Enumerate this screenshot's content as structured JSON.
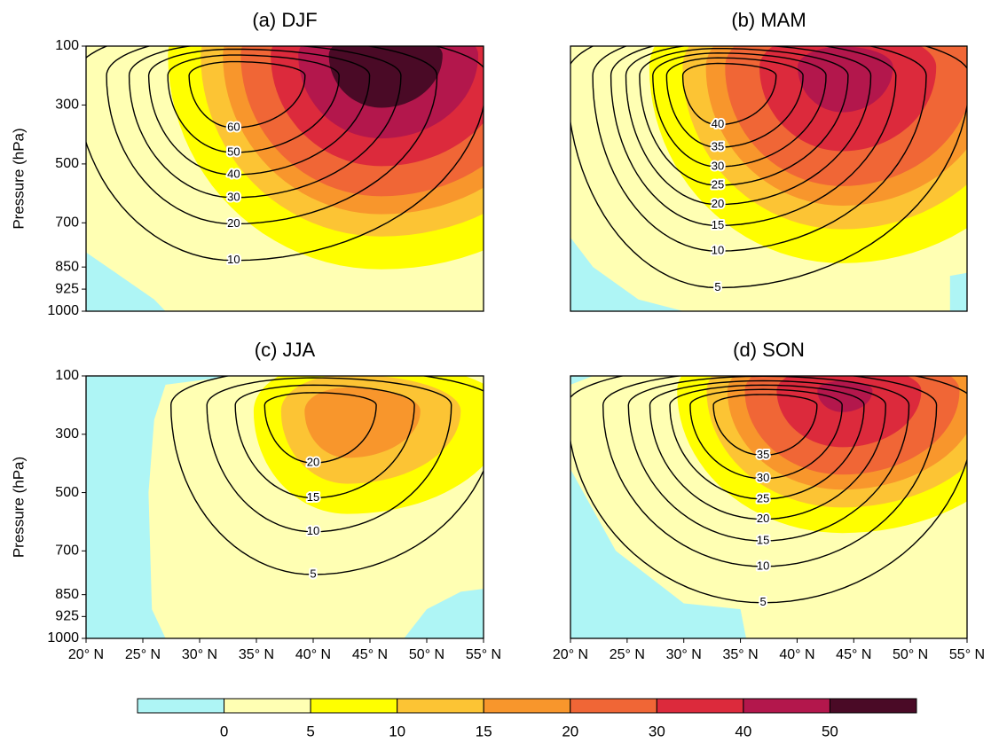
{
  "chart_data": [
    {
      "type": "contour",
      "title": "(a) DJF",
      "ylabel": "Pressure (hPa)",
      "xlim": [
        20,
        55
      ],
      "ylim": [
        1000,
        100
      ],
      "yticks": [
        100,
        300,
        500,
        700,
        850,
        925,
        1000
      ],
      "contours": [
        60,
        50,
        40,
        30,
        20,
        10
      ]
    },
    {
      "type": "contour",
      "title": "(b) MAM",
      "xlim": [
        20,
        55
      ],
      "ylim": [
        1000,
        100
      ],
      "contours": [
        40,
        35,
        30,
        25,
        20,
        15,
        10,
        5
      ]
    },
    {
      "type": "contour",
      "title": "(c) JJA",
      "ylabel": "Pressure (hPa)",
      "xlim": [
        20,
        55
      ],
      "ylim": [
        1000,
        100
      ],
      "yticks": [
        100,
        300,
        500,
        700,
        850,
        925,
        1000
      ],
      "xticks": [
        {
          "value": 20,
          "label": "20° N"
        },
        {
          "value": 25,
          "label": "25° N"
        },
        {
          "value": 30,
          "label": "30° N"
        },
        {
          "value": 35,
          "label": "35° N"
        },
        {
          "value": 40,
          "label": "40° N"
        },
        {
          "value": 45,
          "label": "45° N"
        },
        {
          "value": 50,
          "label": "50° N"
        },
        {
          "value": 55,
          "label": "55° N"
        }
      ],
      "contours": [
        20,
        15,
        10,
        5
      ]
    },
    {
      "type": "contour",
      "title": "(d) SON",
      "xlim": [
        20,
        55
      ],
      "ylim": [
        1000,
        100
      ],
      "xticks": [
        {
          "value": 20,
          "label": "20° N"
        },
        {
          "value": 25,
          "label": "25° N"
        },
        {
          "value": 30,
          "label": "30° N"
        },
        {
          "value": 35,
          "label": "35° N"
        },
        {
          "value": 40,
          "label": "40° N"
        },
        {
          "value": 45,
          "label": "45° N"
        },
        {
          "value": 50,
          "label": "50° N"
        },
        {
          "value": 55,
          "label": "55° N"
        }
      ],
      "contours": [
        35,
        30,
        25,
        20,
        15,
        10,
        5
      ]
    }
  ],
  "colorbar": {
    "levels": [
      0,
      5,
      10,
      15,
      20,
      30,
      40,
      50
    ],
    "colors": [
      "#aef5f5",
      "#ffffb3",
      "#ffff00",
      "#fcc434",
      "#f8962c",
      "#f06636",
      "#dc2a3c",
      "#b3174c",
      "#4a0a26"
    ]
  }
}
